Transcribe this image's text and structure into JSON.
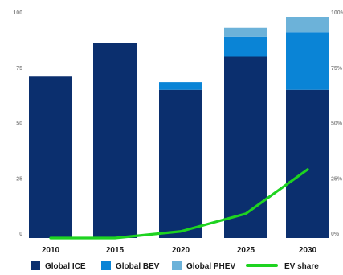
{
  "chart_data": {
    "type": "bar",
    "stacked": true,
    "categories": [
      "2010",
      "2015",
      "2020",
      "2025",
      "2030"
    ],
    "series": [
      {
        "name": "Global ICE",
        "color": "#0b2f6e",
        "values": [
          73,
          88,
          67,
          82,
          67
        ]
      },
      {
        "name": "Global BEV",
        "color": "#0a84d6",
        "values": [
          0,
          0,
          3.5,
          9,
          26
        ]
      },
      {
        "name": "Global PHEV",
        "color": "#6cb2d9",
        "values": [
          0,
          0,
          0,
          4,
          7
        ]
      }
    ],
    "line_series": {
      "name": "EV share",
      "color": "#1ed320",
      "axis": "right",
      "values": [
        0,
        0,
        3,
        11,
        31
      ]
    },
    "left_axis": {
      "ylim": [
        0,
        100
      ],
      "ticks": [
        "0",
        "25",
        "50",
        "75",
        "100"
      ]
    },
    "right_axis": {
      "ylim": [
        0,
        100
      ],
      "ticks": [
        "0%",
        "25%",
        "50%",
        "75%",
        "100%"
      ]
    },
    "grid": false,
    "legend_position": "bottom"
  }
}
